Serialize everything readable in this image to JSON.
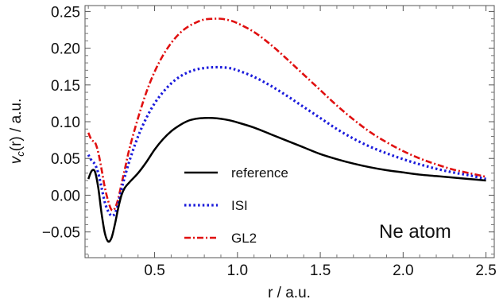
{
  "chart_data": {
    "type": "line",
    "title": "",
    "xlabel": "r / a.u.",
    "ylabel_main": "v",
    "ylabel_sub": "c",
    "ylabel_rest": "(r) / a.u.",
    "xlim": [
      0.08,
      2.55
    ],
    "ylim": [
      -0.085,
      0.258
    ],
    "x_ticks": [
      0.5,
      1.0,
      1.5,
      2.0,
      2.5
    ],
    "x_tick_labels": [
      "0.5",
      "1.0",
      "1.5",
      "2.0",
      "2.5"
    ],
    "y_ticks": [
      -0.05,
      0.0,
      0.05,
      0.1,
      0.15,
      0.2,
      0.25
    ],
    "y_tick_labels": [
      "−0.05",
      "0.00",
      "0.05",
      "0.10",
      "0.15",
      "0.20",
      "0.25"
    ],
    "grid": false,
    "legend_position": "lower-center",
    "annotation": "Ne atom",
    "series": [
      {
        "name": "reference",
        "color": "#000000",
        "style": "solid",
        "x": [
          0.1,
          0.12,
          0.14,
          0.16,
          0.18,
          0.2,
          0.22,
          0.24,
          0.26,
          0.28,
          0.3,
          0.32,
          0.35,
          0.4,
          0.45,
          0.5,
          0.55,
          0.6,
          0.65,
          0.7,
          0.75,
          0.8,
          0.85,
          0.9,
          0.95,
          1.0,
          1.1,
          1.2,
          1.3,
          1.4,
          1.5,
          1.6,
          1.7,
          1.8,
          1.9,
          2.0,
          2.1,
          2.2,
          2.3,
          2.4,
          2.5
        ],
        "y": [
          0.022,
          0.033,
          0.032,
          0.01,
          -0.025,
          -0.052,
          -0.063,
          -0.058,
          -0.04,
          -0.018,
          0.0,
          0.01,
          0.018,
          0.03,
          0.045,
          0.062,
          0.076,
          0.087,
          0.095,
          0.101,
          0.104,
          0.105,
          0.105,
          0.104,
          0.102,
          0.099,
          0.092,
          0.083,
          0.074,
          0.065,
          0.056,
          0.049,
          0.043,
          0.038,
          0.034,
          0.031,
          0.028,
          0.026,
          0.024,
          0.022,
          0.02
        ]
      },
      {
        "name": "ISI",
        "color": "#1a1adb",
        "style": "dotted",
        "x": [
          0.1,
          0.12,
          0.14,
          0.16,
          0.18,
          0.2,
          0.22,
          0.24,
          0.26,
          0.28,
          0.3,
          0.32,
          0.35,
          0.4,
          0.45,
          0.5,
          0.55,
          0.6,
          0.65,
          0.7,
          0.75,
          0.8,
          0.85,
          0.9,
          0.95,
          1.0,
          1.1,
          1.2,
          1.3,
          1.4,
          1.5,
          1.6,
          1.7,
          1.8,
          1.9,
          2.0,
          2.1,
          2.2,
          2.3,
          2.4,
          2.5
        ],
        "y": [
          0.055,
          0.047,
          0.042,
          0.03,
          0.01,
          -0.01,
          -0.022,
          -0.028,
          -0.025,
          -0.012,
          0.008,
          0.025,
          0.048,
          0.08,
          0.105,
          0.125,
          0.14,
          0.152,
          0.161,
          0.167,
          0.171,
          0.173,
          0.174,
          0.174,
          0.173,
          0.17,
          0.161,
          0.149,
          0.135,
          0.12,
          0.105,
          0.09,
          0.077,
          0.066,
          0.057,
          0.049,
          0.042,
          0.036,
          0.031,
          0.027,
          0.022
        ]
      },
      {
        "name": "GL2",
        "color": "#e01010",
        "style": "dashdot",
        "x": [
          0.1,
          0.12,
          0.14,
          0.16,
          0.18,
          0.2,
          0.22,
          0.24,
          0.26,
          0.28,
          0.3,
          0.32,
          0.35,
          0.4,
          0.45,
          0.5,
          0.55,
          0.6,
          0.65,
          0.7,
          0.75,
          0.8,
          0.85,
          0.9,
          0.95,
          1.0,
          1.1,
          1.2,
          1.3,
          1.4,
          1.5,
          1.6,
          1.7,
          1.8,
          1.9,
          2.0,
          2.1,
          2.2,
          2.3,
          2.4,
          2.5
        ],
        "y": [
          0.085,
          0.075,
          0.072,
          0.058,
          0.035,
          0.01,
          -0.008,
          -0.02,
          -0.018,
          -0.005,
          0.015,
          0.035,
          0.065,
          0.105,
          0.14,
          0.168,
          0.19,
          0.207,
          0.22,
          0.229,
          0.235,
          0.239,
          0.24,
          0.24,
          0.238,
          0.234,
          0.222,
          0.205,
          0.185,
          0.164,
          0.143,
          0.122,
          0.103,
          0.086,
          0.072,
          0.06,
          0.05,
          0.042,
          0.035,
          0.03,
          0.025
        ]
      }
    ]
  }
}
